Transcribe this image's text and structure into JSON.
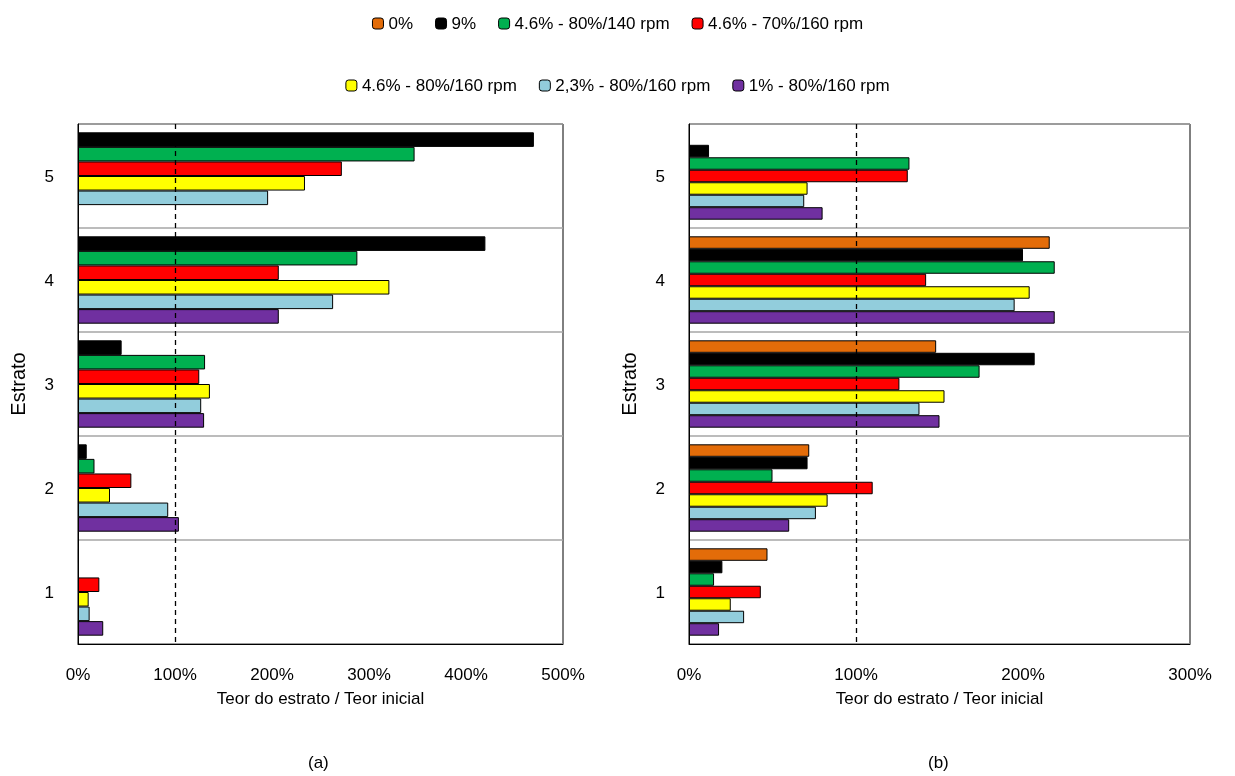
{
  "chart_data": [
    {
      "type": "bar",
      "orientation": "horizontal",
      "categories": [
        "5",
        "4",
        "3",
        "2",
        "1"
      ],
      "xlabel": "Teor do estrato / Teor inicial",
      "ylabel": "Estrato",
      "xlim": [
        0,
        500
      ],
      "xticks": [
        {
          "value": 0,
          "label": "0%"
        },
        {
          "value": 100,
          "label": "100%"
        },
        {
          "value": 200,
          "label": "200%"
        },
        {
          "value": 300,
          "label": "300%"
        },
        {
          "value": 400,
          "label": "400%"
        },
        {
          "value": 500,
          "label": "500%"
        }
      ],
      "grid": "y",
      "legend": false,
      "annotations": [
        "(a)"
      ],
      "ref_lines": [
        {
          "axis": "x",
          "value": 100,
          "line_style": "dashed",
          "color": "#000000"
        }
      ],
      "series": [
        {
          "color": "#000000",
          "values": [
            470,
            420,
            45,
            9,
            1
          ]
        },
        {
          "color": "#00b050",
          "values": [
            347,
            288,
            131,
            17,
            null
          ]
        },
        {
          "color": "#ff0000",
          "values": [
            272,
            207,
            125,
            55,
            22
          ]
        },
        {
          "color": "#ffff00",
          "values": [
            234,
            321,
            136,
            33,
            11
          ]
        },
        {
          "color": "#92cddc",
          "values": [
            196,
            263,
            127,
            93,
            12
          ]
        },
        {
          "color": "#7030a0",
          "values": [
            null,
            207,
            130,
            104,
            26
          ]
        }
      ]
    },
    {
      "type": "bar",
      "orientation": "horizontal",
      "categories": [
        "5",
        "4",
        "3",
        "2",
        "1"
      ],
      "xlabel": "Teor do estrato / Teor inicial",
      "ylabel": "Estrato",
      "xlim": [
        0,
        300
      ],
      "xticks": [
        {
          "value": 0,
          "label": "0%"
        },
        {
          "value": 100,
          "label": "100%"
        },
        {
          "value": 200,
          "label": "200%"
        },
        {
          "value": 300,
          "label": "300%"
        }
      ],
      "grid": "y",
      "legend": "top",
      "annotations": [
        "(b)"
      ],
      "ref_lines": [
        {
          "axis": "x",
          "value": 100,
          "line_style": "dashed",
          "color": "#000000"
        }
      ],
      "series": [
        {
          "name": "0%",
          "color": "#e36c09",
          "values": [
            null,
            216,
            148,
            72,
            47
          ]
        },
        {
          "name": "9%",
          "color": "#000000",
          "values": [
            12,
            200,
            207,
            71,
            20
          ]
        },
        {
          "name": "4.6% - 80%/140 rpm",
          "color": "#00b050",
          "values": [
            132,
            219,
            174,
            50,
            15
          ]
        },
        {
          "name": "4.6% - 70%/160 rpm",
          "color": "#ff0000",
          "values": [
            131,
            142,
            126,
            110,
            43
          ]
        },
        {
          "name": "4.6% - 80%/160 rpm",
          "color": "#ffff00",
          "values": [
            71,
            204,
            153,
            83,
            25
          ]
        },
        {
          "name": "2,3% - 80%/160 rpm",
          "color": "#92cddc",
          "values": [
            69,
            195,
            138,
            76,
            33
          ]
        },
        {
          "name": "1% - 80%/160 rpm",
          "color": "#7030a0",
          "values": [
            80,
            219,
            150,
            60,
            18
          ]
        }
      ]
    }
  ]
}
